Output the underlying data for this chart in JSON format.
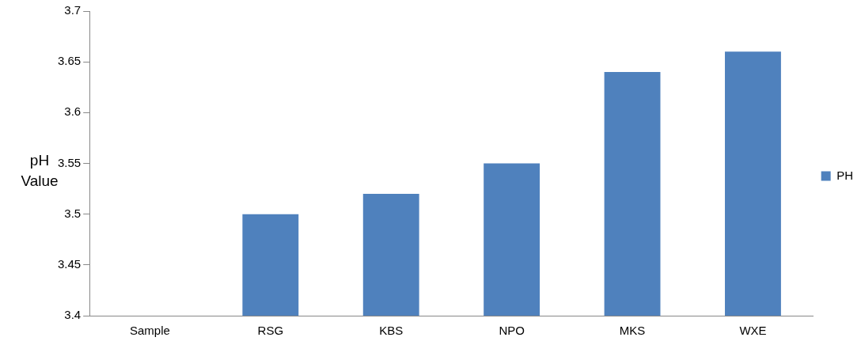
{
  "chart_data": {
    "type": "bar",
    "ylabel": "pH Value",
    "categories": [
      "Sample",
      "RSG",
      "KBS",
      "NPO",
      "MKS",
      "WXE"
    ],
    "series": [
      {
        "name": "PH",
        "color": "#4f81bd",
        "values": [
          null,
          3.5,
          3.52,
          3.55,
          3.64,
          3.66
        ]
      }
    ],
    "ylim": [
      3.4,
      3.7
    ],
    "yticks": [
      3.4,
      3.45,
      3.5,
      3.55,
      3.6,
      3.65,
      3.7
    ],
    "grid": false,
    "legend": "right"
  }
}
